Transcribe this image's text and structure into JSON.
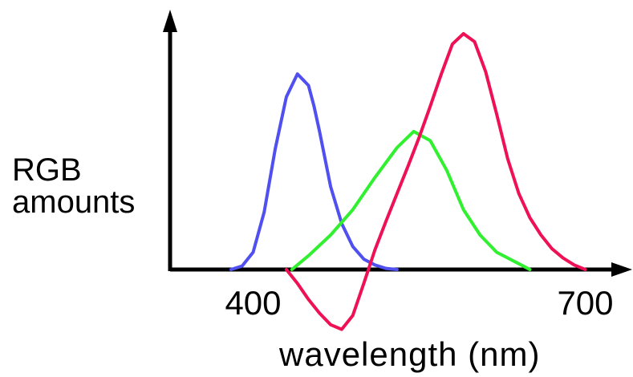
{
  "chart_data": {
    "type": "line",
    "title": "",
    "xlabel": "wavelength (nm)",
    "ylabel_lines": [
      "RGB",
      "amounts"
    ],
    "xlim": [
      325,
      725
    ],
    "ylim": [
      -0.6,
      2.2
    ],
    "x_ticks": [
      {
        "value": 400,
        "label": "400"
      },
      {
        "value": 700,
        "label": "700"
      }
    ],
    "grid": false,
    "legend": "none",
    "series": [
      {
        "color": "#5050f0",
        "x": [
          380,
          390,
          400,
          410,
          420,
          430,
          440,
          450,
          455,
          460,
          470,
          480,
          490,
          500,
          510,
          520,
          530
        ],
        "y": [
          0.0,
          0.03,
          0.15,
          0.5,
          1.05,
          1.5,
          1.7,
          1.6,
          1.42,
          1.2,
          0.72,
          0.4,
          0.2,
          0.09,
          0.04,
          0.01,
          0.0
        ]
      },
      {
        "color": "#30f030",
        "x": [
          435,
          450,
          470,
          490,
          510,
          530,
          545,
          560,
          575,
          590,
          605,
          620,
          640,
          650
        ],
        "y": [
          0.0,
          0.12,
          0.3,
          0.52,
          0.8,
          1.06,
          1.2,
          1.12,
          0.86,
          0.52,
          0.3,
          0.15,
          0.05,
          0.0
        ]
      },
      {
        "color": "#ee1155",
        "x": [
          430,
          440,
          450,
          460,
          470,
          480,
          490,
          500,
          510,
          520,
          530,
          540,
          550,
          560,
          570,
          580,
          590,
          600,
          610,
          620,
          630,
          640,
          650,
          660,
          670,
          680,
          690,
          700
        ],
        "y": [
          0.0,
          -0.12,
          -0.26,
          -0.38,
          -0.48,
          -0.52,
          -0.4,
          -0.12,
          0.17,
          0.42,
          0.66,
          0.9,
          1.15,
          1.42,
          1.7,
          1.96,
          2.05,
          1.98,
          1.72,
          1.35,
          0.96,
          0.66,
          0.45,
          0.3,
          0.18,
          0.1,
          0.04,
          0.0
        ]
      }
    ]
  }
}
